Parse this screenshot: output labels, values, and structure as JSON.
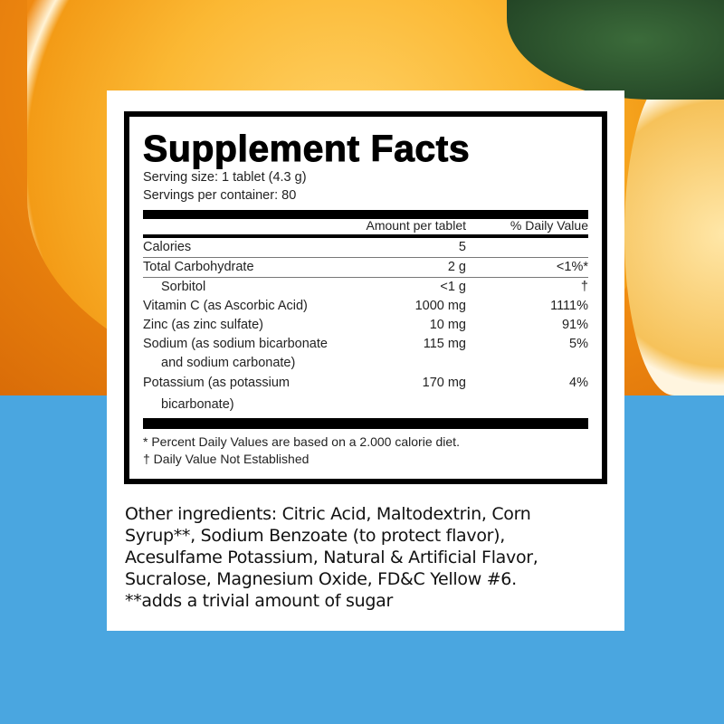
{
  "colors": {
    "background_blue": "#4aa6e0",
    "photo": "orange slices"
  },
  "facts": {
    "title": "Supplement Facts",
    "serving_size": "Serving size: 1 tablet (4.3 g)",
    "servings": "Servings per container: 80",
    "col_amount": "Amount per tablet",
    "col_dv": "% Daily Value",
    "rows": [
      {
        "name": "Calories",
        "amount": "5",
        "dv": ""
      },
      {
        "name": "Total Carbohydrate",
        "amount": "2 g",
        "dv": "<1%*"
      },
      {
        "name": "Sorbitol",
        "amount": "<1 g",
        "dv": "†"
      },
      {
        "name": "Vitamin C (as Ascorbic Acid)",
        "amount": "1000 mg",
        "dv": "1111%"
      },
      {
        "name": "Zinc (as zinc sulfate)",
        "amount": "10 mg",
        "dv": "91%"
      },
      {
        "name": "Sodium (as sodium bicarbonate",
        "name2": "and sodium carbonate)",
        "amount": "115 mg",
        "dv": "5%"
      },
      {
        "name": "Potassium (as potassium",
        "name2": "bicarbonate)",
        "amount": "170 mg",
        "dv": "4%"
      }
    ],
    "footnote1": "* Percent Daily Values are based on a 2.000 calorie diet.",
    "footnote2": "† Daily Value Not Established"
  },
  "other": {
    "l1": "Other ingredients: Citric Acid, Maltodextrin, Corn",
    "l2": "Syrup**, Sodium Benzoate (to protect flavor),",
    "l3": "Acesulfame Potassium, Natural & Artificial Flavor,",
    "l4": "Sucralose, Magnesium Oxide, FD&C Yellow #6.",
    "l5": "**adds a trivial amount of sugar"
  }
}
